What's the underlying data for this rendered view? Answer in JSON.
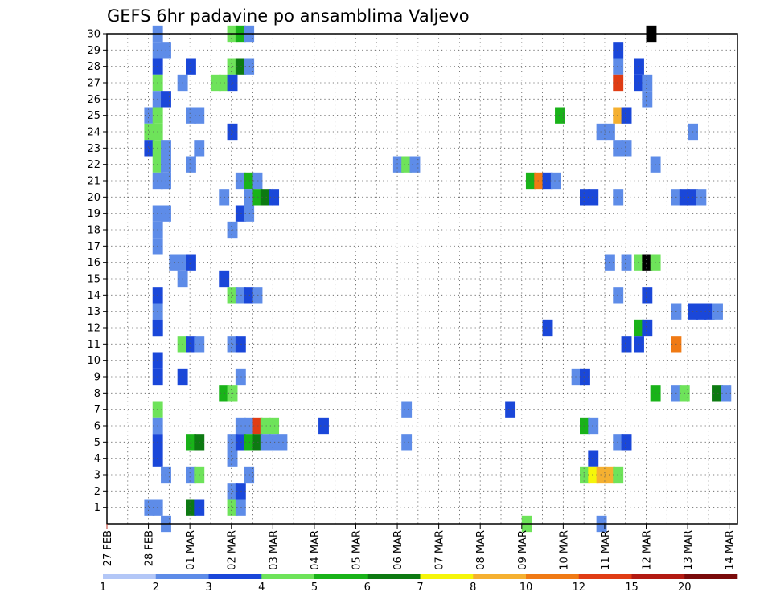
{
  "chart_data": {
    "type": "heatmap",
    "title": "GEFS 6hr padavine po ansamblima Valjevo",
    "xlabel": "",
    "ylabel": "",
    "x_range_days": [
      0,
      15.2
    ],
    "y_range": [
      0,
      30
    ],
    "grid": "dotted",
    "x_tick_labels": [
      "27 FEB",
      "28 FEB",
      "01 MAR",
      "02 MAR",
      "03 MAR",
      "04 MAR",
      "05 MAR",
      "06 MAR",
      "07 MAR",
      "08 MAR",
      "09 MAR",
      "10 MAR",
      "11 MAR",
      "12 MAR",
      "13 MAR",
      "14 MAR"
    ],
    "y_tick_labels": [
      "1",
      "2",
      "3",
      "4",
      "5",
      "6",
      "7",
      "8",
      "9",
      "10",
      "11",
      "12",
      "13",
      "14",
      "15",
      "16",
      "17",
      "18",
      "19",
      "20",
      "21",
      "22",
      "23",
      "24",
      "25",
      "26",
      "27",
      "28",
      "29",
      "30"
    ],
    "colorbar": {
      "tick_labels": [
        "1",
        "2",
        "3",
        "4",
        "5",
        "6",
        "7",
        "8",
        "10",
        "12",
        "15",
        "20"
      ],
      "colors": [
        "#b3c7f7",
        "#5e8ce8",
        "#1a47d9",
        "#6ee35a",
        "#19b319",
        "#0d7a12",
        "#f5f50a",
        "#f5b030",
        "#f07a14",
        "#e03c14",
        "#b31a12",
        "#7a0a0a"
      ]
    },
    "cells": [
      [
        30,
        1.1,
        1
      ],
      [
        30,
        2.9,
        3
      ],
      [
        30,
        3.1,
        4
      ],
      [
        30,
        3.3,
        1
      ],
      [
        30,
        13.0,
        12
      ],
      [
        29,
        1.1,
        1
      ],
      [
        29,
        1.3,
        1
      ],
      [
        29,
        12.2,
        2
      ],
      [
        28,
        1.1,
        2
      ],
      [
        28,
        1.9,
        2
      ],
      [
        28,
        2.9,
        3
      ],
      [
        28,
        3.1,
        5
      ],
      [
        28,
        3.3,
        1
      ],
      [
        28,
        12.2,
        1
      ],
      [
        28,
        12.7,
        2
      ],
      [
        27,
        1.1,
        3
      ],
      [
        27,
        1.7,
        1
      ],
      [
        27,
        2.5,
        3
      ],
      [
        27,
        2.7,
        3
      ],
      [
        27,
        2.9,
        2
      ],
      [
        27,
        12.2,
        9
      ],
      [
        27,
        12.7,
        2
      ],
      [
        27,
        12.9,
        1
      ],
      [
        26,
        1.1,
        1
      ],
      [
        26,
        1.3,
        2
      ],
      [
        26,
        12.9,
        1
      ],
      [
        25,
        0.9,
        1
      ],
      [
        25,
        1.1,
        3
      ],
      [
        25,
        1.9,
        1
      ],
      [
        25,
        2.1,
        1
      ],
      [
        25,
        10.8,
        4
      ],
      [
        25,
        12.2,
        7
      ],
      [
        25,
        12.4,
        2
      ],
      [
        24,
        0.9,
        3
      ],
      [
        24,
        1.1,
        3
      ],
      [
        24,
        2.9,
        2
      ],
      [
        24,
        11.8,
        1
      ],
      [
        24,
        12.0,
        1
      ],
      [
        24,
        14.0,
        1
      ],
      [
        23,
        0.9,
        2
      ],
      [
        23,
        1.1,
        3
      ],
      [
        23,
        1.3,
        1
      ],
      [
        23,
        2.1,
        1
      ],
      [
        23,
        12.2,
        1
      ],
      [
        23,
        12.4,
        1
      ],
      [
        22,
        1.1,
        3
      ],
      [
        22,
        1.3,
        1
      ],
      [
        22,
        1.9,
        1
      ],
      [
        22,
        6.9,
        1
      ],
      [
        22,
        7.1,
        3
      ],
      [
        22,
        7.3,
        1
      ],
      [
        22,
        13.1,
        1
      ],
      [
        21,
        1.1,
        1
      ],
      [
        21,
        1.3,
        1
      ],
      [
        21,
        3.1,
        1
      ],
      [
        21,
        3.3,
        4
      ],
      [
        21,
        3.5,
        1
      ],
      [
        21,
        10.1,
        4
      ],
      [
        21,
        10.3,
        8
      ],
      [
        21,
        10.5,
        2
      ],
      [
        21,
        10.7,
        1
      ],
      [
        20,
        2.7,
        1
      ],
      [
        20,
        3.3,
        1
      ],
      [
        20,
        3.5,
        4
      ],
      [
        20,
        3.7,
        5
      ],
      [
        20,
        3.9,
        2
      ],
      [
        20,
        11.4,
        2
      ],
      [
        20,
        11.6,
        2
      ],
      [
        20,
        12.2,
        1
      ],
      [
        20,
        13.6,
        1
      ],
      [
        20,
        13.8,
        2
      ],
      [
        20,
        14.0,
        2
      ],
      [
        20,
        14.2,
        1
      ],
      [
        19,
        1.1,
        1
      ],
      [
        19,
        1.3,
        1
      ],
      [
        19,
        3.1,
        2
      ],
      [
        19,
        3.3,
        1
      ],
      [
        18,
        1.1,
        1
      ],
      [
        18,
        2.9,
        1
      ],
      [
        17,
        1.1,
        1
      ],
      [
        16,
        1.5,
        1
      ],
      [
        16,
        1.7,
        1
      ],
      [
        16,
        1.9,
        2
      ],
      [
        16,
        12.0,
        1
      ],
      [
        16,
        12.4,
        1
      ],
      [
        16,
        12.7,
        3
      ],
      [
        16,
        12.9,
        12
      ],
      [
        16,
        13.1,
        3
      ],
      [
        15,
        1.7,
        1
      ],
      [
        15,
        2.7,
        2
      ],
      [
        14,
        1.1,
        2
      ],
      [
        14,
        2.9,
        3
      ],
      [
        14,
        3.1,
        1
      ],
      [
        14,
        3.3,
        2
      ],
      [
        14,
        3.5,
        1
      ],
      [
        14,
        12.2,
        1
      ],
      [
        14,
        12.9,
        2
      ],
      [
        13,
        1.1,
        1
      ],
      [
        13,
        13.6,
        1
      ],
      [
        13,
        14.0,
        2
      ],
      [
        13,
        14.2,
        2
      ],
      [
        13,
        14.4,
        2
      ],
      [
        13,
        14.6,
        1
      ],
      [
        12,
        1.1,
        1
      ],
      [
        12,
        1.1,
        2
      ],
      [
        12,
        10.5,
        2
      ],
      [
        12,
        12.7,
        4
      ],
      [
        12,
        12.9,
        2
      ],
      [
        11,
        1.7,
        3
      ],
      [
        11,
        1.9,
        2
      ],
      [
        11,
        2.1,
        1
      ],
      [
        11,
        2.9,
        1
      ],
      [
        11,
        3.1,
        2
      ],
      [
        11,
        12.4,
        2
      ],
      [
        11,
        12.7,
        2
      ],
      [
        11,
        13.6,
        8
      ],
      [
        10,
        1.1,
        2
      ],
      [
        9,
        1.1,
        2
      ],
      [
        9,
        1.7,
        2
      ],
      [
        9,
        3.1,
        1
      ],
      [
        9,
        11.2,
        1
      ],
      [
        9,
        11.4,
        2
      ],
      [
        8,
        2.7,
        4
      ],
      [
        8,
        2.9,
        3
      ],
      [
        8,
        13.1,
        4
      ],
      [
        8,
        13.6,
        1
      ],
      [
        8,
        13.8,
        3
      ],
      [
        8,
        14.6,
        5
      ],
      [
        8,
        14.8,
        1
      ],
      [
        7,
        1.1,
        3
      ],
      [
        7,
        7.1,
        1
      ],
      [
        7,
        9.6,
        2
      ],
      [
        6,
        1.1,
        1
      ],
      [
        6,
        3.1,
        1
      ],
      [
        6,
        3.3,
        1
      ],
      [
        6,
        3.5,
        9
      ],
      [
        6,
        3.7,
        3
      ],
      [
        6,
        3.9,
        3
      ],
      [
        6,
        5.1,
        2
      ],
      [
        6,
        11.4,
        4
      ],
      [
        6,
        11.6,
        1
      ],
      [
        5,
        1.1,
        2
      ],
      [
        5,
        1.9,
        4
      ],
      [
        5,
        2.1,
        5
      ],
      [
        5,
        2.9,
        1
      ],
      [
        5,
        3.1,
        2
      ],
      [
        5,
        3.3,
        4
      ],
      [
        5,
        3.5,
        5
      ],
      [
        5,
        3.7,
        1
      ],
      [
        5,
        3.9,
        1
      ],
      [
        5,
        4.1,
        1
      ],
      [
        5,
        7.1,
        1
      ],
      [
        5,
        12.2,
        1
      ],
      [
        5,
        12.4,
        2
      ],
      [
        4,
        1.1,
        2
      ],
      [
        4,
        2.9,
        1
      ],
      [
        4,
        11.6,
        2
      ],
      [
        3,
        1.3,
        1
      ],
      [
        3,
        1.9,
        1
      ],
      [
        3,
        2.1,
        3
      ],
      [
        3,
        3.3,
        1
      ],
      [
        3,
        11.4,
        3
      ],
      [
        3,
        11.6,
        6
      ],
      [
        3,
        11.8,
        7
      ],
      [
        3,
        12.0,
        7
      ],
      [
        3,
        12.2,
        3
      ],
      [
        2,
        2.9,
        1
      ],
      [
        2,
        3.1,
        2
      ],
      [
        1,
        0.9,
        1
      ],
      [
        1,
        1.1,
        1
      ],
      [
        1,
        1.9,
        5
      ],
      [
        1,
        2.1,
        2
      ],
      [
        1,
        2.9,
        3
      ],
      [
        1,
        3.1,
        1
      ],
      [
        0,
        1.3,
        1
      ],
      [
        0,
        10.0,
        3
      ],
      [
        0,
        11.8,
        1
      ]
    ]
  }
}
